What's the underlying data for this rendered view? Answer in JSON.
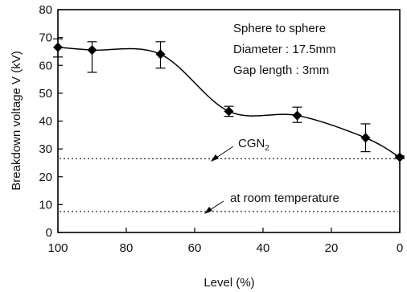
{
  "chart_data": {
    "type": "line",
    "title": "",
    "xlabel": "Level (%)",
    "ylabel": "Breakdown voltage V (kV)",
    "xlim": [
      100,
      0
    ],
    "ylim": [
      0,
      80
    ],
    "x_ticks": [
      100,
      80,
      60,
      40,
      20,
      0
    ],
    "y_ticks": [
      0,
      10,
      20,
      30,
      40,
      50,
      60,
      70,
      80
    ],
    "grid": false,
    "series": [
      {
        "x": [
          100,
          90,
          70,
          50,
          30,
          10,
          0
        ],
        "y": [
          66.5,
          65.5,
          64,
          43.5,
          42,
          34,
          27
        ],
        "y_err_low": [
          3.5,
          8,
          5,
          1.8,
          2.5,
          5,
          0.5
        ],
        "y_err_high": [
          3,
          3,
          4.5,
          1.8,
          3,
          5,
          0.5
        ],
        "marker": "diamond",
        "color": "#000000"
      }
    ],
    "reference_lines": [
      {
        "y": 26.5,
        "label_main": "CGN",
        "label_sub": "2",
        "style": "dotted"
      },
      {
        "y": 7.5,
        "label_main": "at room temperature",
        "label_sub": "",
        "style": "dotted"
      }
    ],
    "annotation_lines": [
      "Sphere to sphere",
      "Diameter : 17.5mm",
      "Gap length : 3mm"
    ]
  }
}
